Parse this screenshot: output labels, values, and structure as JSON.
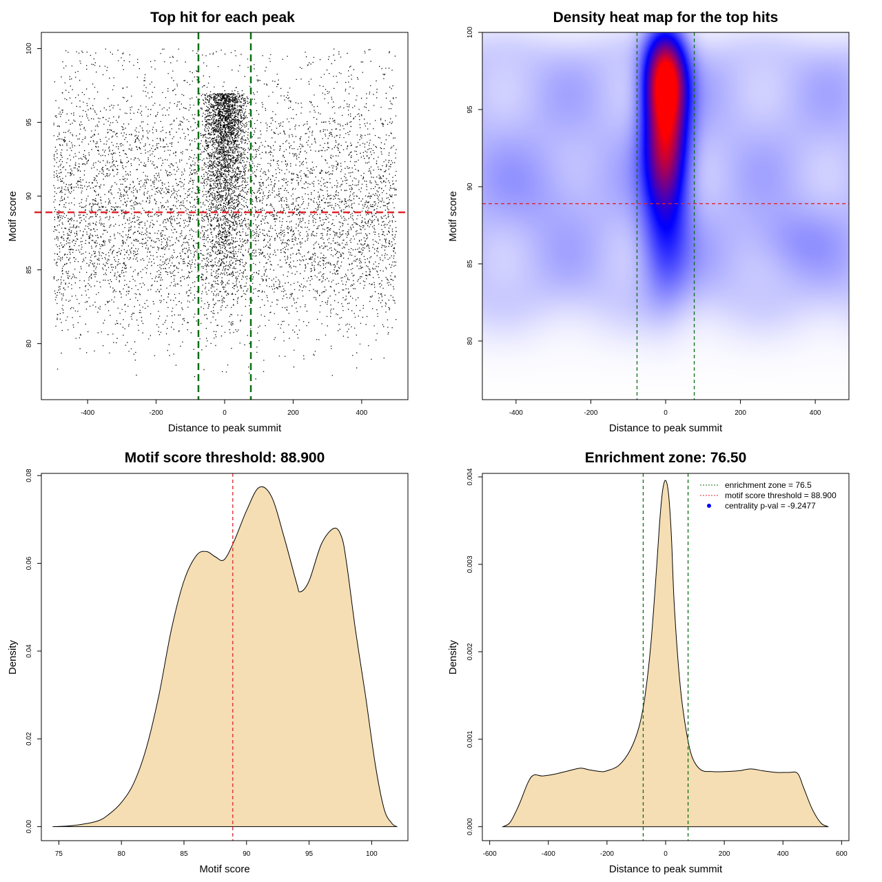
{
  "colors": {
    "point": "#000000",
    "threshold_line": "#e0222a",
    "zone_line": "#0a6e12",
    "density_fill": "#f5deb3",
    "heat_low": "#ffffff",
    "heat_mid": "#0000ff",
    "heat_high": "#ff0000",
    "legend_dot": "#0000ff"
  },
  "chart_data": [
    {
      "id": "scatter",
      "type": "scatter",
      "title": "Top hit for each peak",
      "xlabel": "Distance to peak summit",
      "ylabel": "Motif score",
      "xlim": [
        -535,
        535
      ],
      "ylim": [
        76.2,
        101.1
      ],
      "xticks": [
        -400,
        -200,
        0,
        200,
        400
      ],
      "yticks": [
        80,
        85,
        90,
        95,
        100
      ],
      "vlines": [
        -76.5,
        76.5
      ],
      "hline": 88.9,
      "n_points_approx": 9000,
      "dense_zone": [
        -76.5,
        76.5
      ],
      "x_range": [
        -500,
        500
      ],
      "y_range": [
        76.5,
        100
      ]
    },
    {
      "id": "heatmap",
      "type": "heatmap",
      "title": "Density heat map for the top hits",
      "xlabel": "Distance to peak summit",
      "ylabel": "Motif score",
      "xlim": [
        -490,
        490
      ],
      "ylim": [
        76.2,
        100.0
      ],
      "xticks": [
        -400,
        -200,
        0,
        200,
        400
      ],
      "yticks": [
        80,
        85,
        90,
        95,
        100
      ],
      "vlines": [
        -76.5,
        76.5
      ],
      "hline": 88.9,
      "peak": {
        "x": 0,
        "y": 97
      }
    },
    {
      "id": "score-density",
      "type": "area",
      "title": "Motif score threshold: 88.900",
      "xlabel": "Motif score",
      "ylabel": "Density",
      "xlim": [
        73.6,
        102.9
      ],
      "ylim": [
        -0.0032,
        0.0805
      ],
      "xticks": [
        75,
        80,
        85,
        90,
        95,
        100
      ],
      "yticks": [
        0.0,
        0.02,
        0.04,
        0.06,
        0.08
      ],
      "ytick_labels": [
        "0.00",
        "0.02",
        "0.04",
        "0.06",
        "0.08"
      ],
      "vline": 88.9,
      "x": [
        74.5,
        76,
        78,
        79,
        80,
        81,
        82,
        83,
        84,
        85,
        86,
        86.8,
        87.5,
        88.2,
        89,
        90,
        91,
        92,
        93,
        94,
        94.3,
        95,
        96,
        97,
        97.6,
        98,
        98.7,
        99.5,
        100.3,
        101,
        101.6,
        102
      ],
      "y": [
        0.0,
        0.0002,
        0.0012,
        0.0028,
        0.0055,
        0.01,
        0.018,
        0.03,
        0.045,
        0.056,
        0.0618,
        0.0627,
        0.0615,
        0.0608,
        0.065,
        0.072,
        0.0773,
        0.0752,
        0.066,
        0.0555,
        0.0535,
        0.056,
        0.0645,
        0.068,
        0.066,
        0.06,
        0.045,
        0.03,
        0.014,
        0.004,
        0.0008,
        0.0
      ]
    },
    {
      "id": "distance-density",
      "type": "area",
      "title": "Enrichment zone: 76.50",
      "xlabel": "Distance to peak summit",
      "ylabel": "Density",
      "xlim": [
        -625,
        625
      ],
      "ylim": [
        -0.00016,
        0.00404
      ],
      "xticks": [
        -600,
        -400,
        -200,
        0,
        200,
        400,
        600
      ],
      "yticks": [
        0.0,
        0.001,
        0.002,
        0.003,
        0.004
      ],
      "ytick_labels": [
        "0.000",
        "0.001",
        "0.002",
        "0.003",
        "0.004"
      ],
      "vlines": [
        -76.5,
        76.5
      ],
      "x": [
        -555,
        -530,
        -500,
        -470,
        -450,
        -420,
        -380,
        -330,
        -290,
        -260,
        -220,
        -200,
        -160,
        -120,
        -90,
        -70,
        -50,
        -30,
        -20,
        -10,
        0,
        10,
        20,
        30,
        50,
        70,
        90,
        120,
        160,
        200,
        250,
        290,
        330,
        380,
        420,
        450,
        470,
        500,
        530,
        555
      ],
      "y": [
        0.0,
        5e-05,
        0.00025,
        0.0005,
        0.00059,
        0.00058,
        0.0006,
        0.00064,
        0.00067,
        0.00065,
        0.00063,
        0.00064,
        0.0007,
        0.00088,
        0.00115,
        0.0015,
        0.0021,
        0.003,
        0.0035,
        0.00385,
        0.00396,
        0.0038,
        0.0033,
        0.0025,
        0.0016,
        0.0011,
        0.0008,
        0.00065,
        0.00063,
        0.00063,
        0.00064,
        0.00066,
        0.00064,
        0.00062,
        0.00062,
        0.00061,
        0.00045,
        0.0002,
        4e-05,
        0.0
      ],
      "legend": {
        "position": "top-right",
        "items": [
          {
            "label": "enrichment zone = 76.5",
            "style": "dotted",
            "color": "#0a6e12"
          },
          {
            "label": "motif score threshold = 88.900",
            "style": "dotted",
            "color": "#e0222a"
          },
          {
            "label": "centrality p-val = -9.2477",
            "style": "dot",
            "color": "#0000ff"
          }
        ]
      }
    }
  ]
}
